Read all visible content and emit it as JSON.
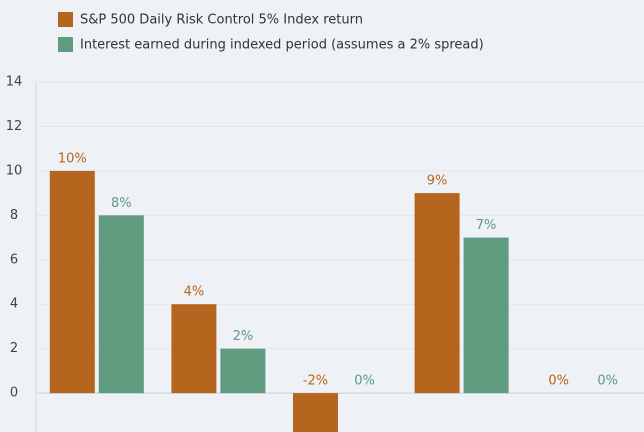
{
  "chart_data": {
    "type": "bar",
    "categories": [
      null,
      null,
      null,
      null,
      null
    ],
    "series": [
      {
        "name": "S&P 500 Daily Risk Control 5% Index return",
        "color": "#b5651d",
        "values": [
          10,
          4,
          -2,
          9,
          0
        ],
        "value_labels": [
          "10%",
          "4%",
          "-2%",
          "9%",
          "0%"
        ]
      },
      {
        "name": "Interest earned during indexed period (assumes a 2% spread)",
        "color": "#5e9b7f",
        "values": [
          8,
          2,
          0,
          7,
          0
        ],
        "value_labels": [
          "8%",
          "2%",
          "0%",
          "7%",
          "0%"
        ]
      }
    ],
    "ylim": [
      -1.75,
      14
    ],
    "yticks": [
      0,
      2,
      4,
      6,
      8,
      10,
      12,
      14
    ],
    "grid": true,
    "legend": "top-left"
  }
}
